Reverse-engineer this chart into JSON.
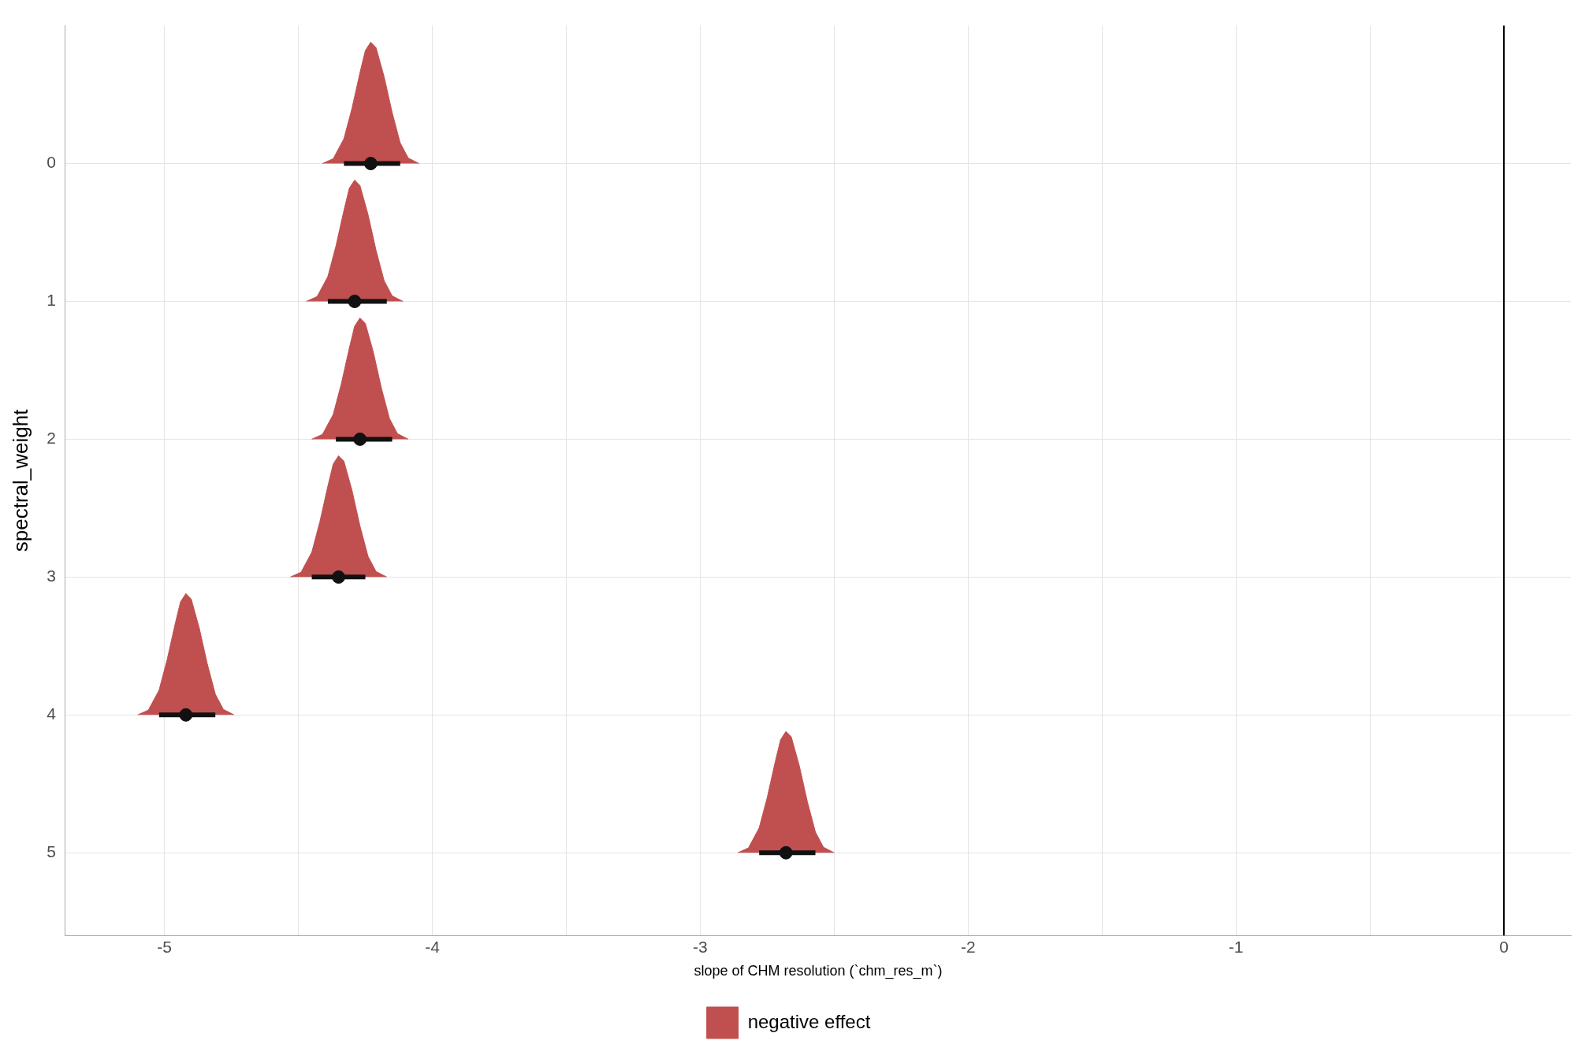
{
  "chart_data": {
    "type": "area",
    "xlabel": "slope of CHM resolution (`chm_res_m`)",
    "ylabel": "spectral_weight",
    "xlim": [
      -5.37,
      0.25
    ],
    "xticks": [
      -5,
      {
        "value": -4.5,
        "label": null
      },
      -4,
      {
        "value": -3.5,
        "label": null
      },
      -3,
      {
        "value": -2.5,
        "label": null
      },
      -2,
      {
        "value": -1.5,
        "label": null
      },
      -1,
      {
        "value": -0.5,
        "label": null
      },
      0
    ],
    "ylim": [
      5.6,
      -1
    ],
    "yticks": [
      0,
      1,
      2,
      3,
      4,
      5
    ],
    "grid": true,
    "legend": "bottom",
    "ref_lines": [
      {
        "axis": "x",
        "value": 0,
        "color": "#000000"
      }
    ],
    "series": [
      {
        "name": "negative effect",
        "color": "#c0504f",
        "x": [
          -4.41,
          -4.37,
          -4.33,
          -4.3,
          -4.27,
          -4.25,
          -4.23,
          -4.21,
          -4.18,
          -4.15,
          -4.12,
          -4.09,
          -4.05
        ],
        "values": [
          0,
          -0.035,
          -0.18,
          -0.4,
          -0.66,
          -0.82,
          -0.88,
          -0.84,
          -0.63,
          -0.37,
          -0.15,
          -0.04,
          0
        ]
      },
      {
        "color": "#c0504f",
        "x": [
          -4.47,
          -4.43,
          -4.39,
          -4.36,
          -4.33,
          -4.31,
          -4.29,
          -4.27,
          -4.24,
          -4.21,
          -4.18,
          -4.15,
          -4.11
        ],
        "values": [
          1,
          0.965,
          0.82,
          0.6,
          0.34,
          0.18,
          0.12,
          0.16,
          0.37,
          0.63,
          0.85,
          0.96,
          1
        ]
      },
      {
        "color": "#c0504f",
        "x": [
          -4.45,
          -4.41,
          -4.37,
          -4.34,
          -4.31,
          -4.29,
          -4.27,
          -4.25,
          -4.22,
          -4.19,
          -4.16,
          -4.13,
          -4.09
        ],
        "values": [
          2,
          1.965,
          1.82,
          1.6,
          1.34,
          1.18,
          1.12,
          1.16,
          1.37,
          1.63,
          1.85,
          1.96,
          2
        ]
      },
      {
        "color": "#c0504f",
        "x": [
          -4.53,
          -4.49,
          -4.45,
          -4.42,
          -4.39,
          -4.37,
          -4.35,
          -4.33,
          -4.3,
          -4.27,
          -4.24,
          -4.21,
          -4.17
        ],
        "values": [
          3,
          2.965,
          2.82,
          2.6,
          2.34,
          2.18,
          2.12,
          2.16,
          2.37,
          2.63,
          2.85,
          2.96,
          3
        ]
      },
      {
        "color": "#c0504f",
        "x": [
          -5.1,
          -5.06,
          -5.02,
          -4.99,
          -4.96,
          -4.94,
          -4.92,
          -4.9,
          -4.87,
          -4.84,
          -4.81,
          -4.78,
          -4.74
        ],
        "values": [
          4,
          3.965,
          3.82,
          3.6,
          3.34,
          3.18,
          3.12,
          3.16,
          3.37,
          3.63,
          3.85,
          3.96,
          4
        ]
      },
      {
        "color": "#c0504f",
        "x": [
          -2.86,
          -2.82,
          -2.78,
          -2.75,
          -2.72,
          -2.7,
          -2.68,
          -2.66,
          -2.63,
          -2.6,
          -2.57,
          -2.54,
          -2.5
        ],
        "values": [
          5,
          4.965,
          4.82,
          4.6,
          4.34,
          4.18,
          4.12,
          4.16,
          4.37,
          4.63,
          4.85,
          4.96,
          5
        ]
      },
      {
        "type": "scatter",
        "color": "#111111",
        "marker": "circle",
        "x": [
          -4.23,
          -4.29,
          -4.27,
          -4.35,
          -4.92,
          -2.68
        ],
        "values": [
          0,
          1,
          2,
          3,
          4,
          5
        ],
        "xerrors": [
          [
            -4.33,
            -4.12
          ],
          [
            -4.39,
            -4.17
          ],
          [
            -4.36,
            -4.15
          ],
          [
            -4.45,
            -4.25
          ],
          [
            -5.02,
            -4.81
          ],
          [
            -2.78,
            -2.57
          ]
        ]
      }
    ]
  }
}
